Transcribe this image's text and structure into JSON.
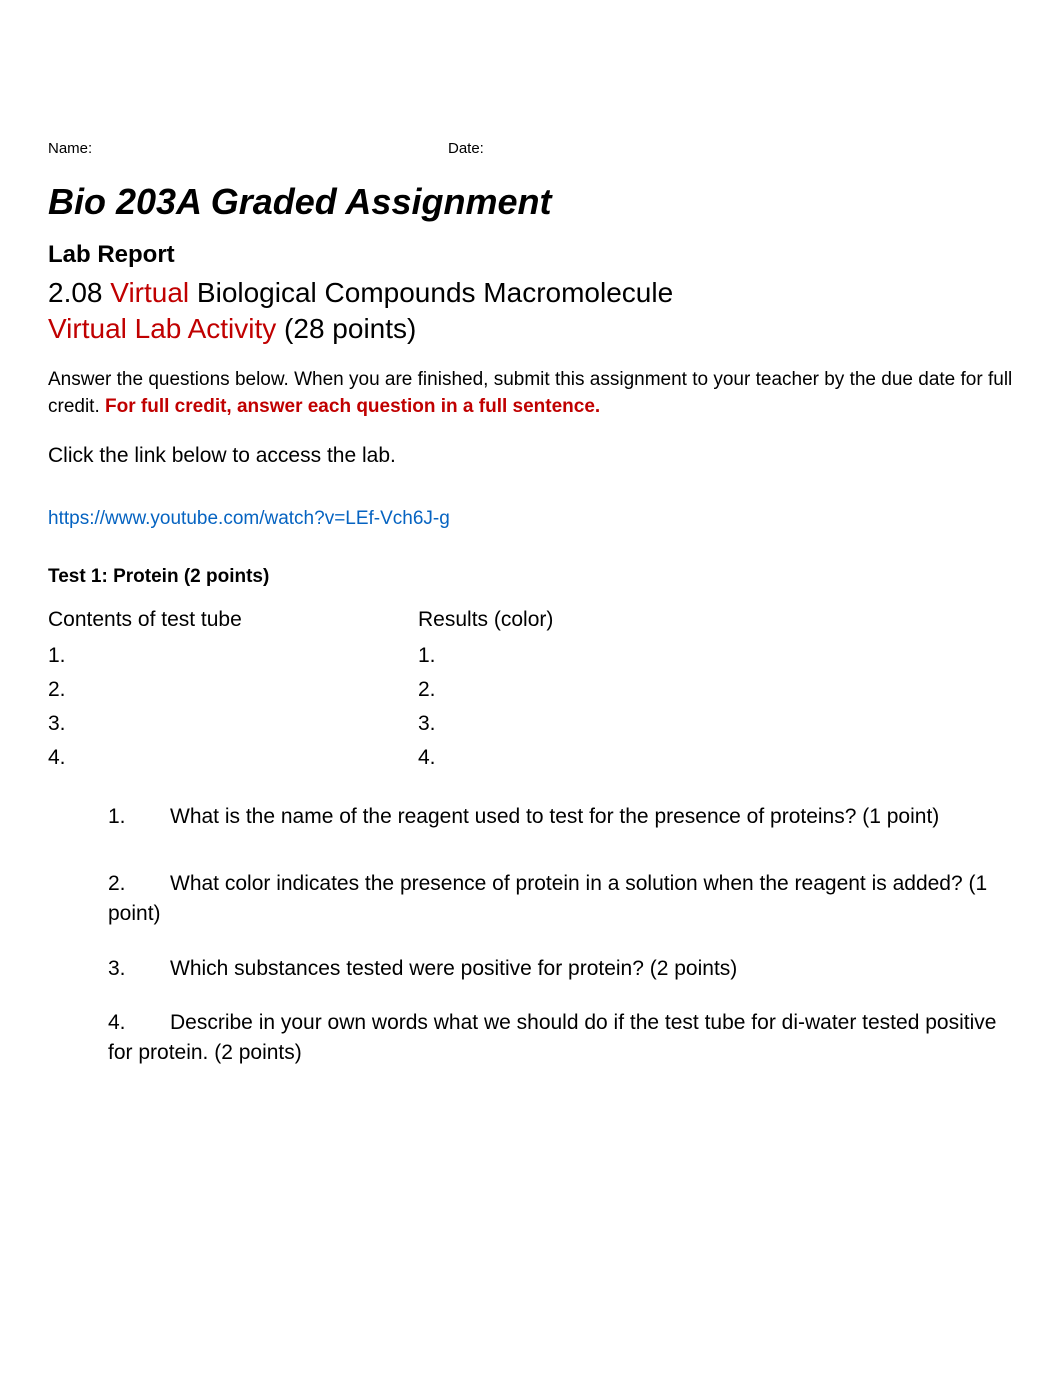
{
  "header": {
    "name_label": "Name:",
    "date_label": "Date:"
  },
  "main_title": "Bio 203A Graded Assignment",
  "lab_report_heading": "Lab Report",
  "subtitle": {
    "part1_prefix": "2.08 ",
    "part1_red": "Virtual",
    "part1_suffix": " Biological Compounds Macromolecule",
    "part2_red": "Virtual Lab Activity",
    "part2_suffix": " (28 points)"
  },
  "instructions": {
    "text1": "Answer the questions below. When you are finished, submit this assignment to your teacher by the due date for full credit.  ",
    "text2_red": "For full credit, answer each question in a full sentence."
  },
  "click_link_text": "Click the link below to access the lab.",
  "link_url": "https://www.youtube.com/watch?v=LEf-Vch6J-g",
  "test1": {
    "heading": "Test 1: Protein (2 points)",
    "col1_header": "Contents of test tube",
    "col2_header": "Results (color)",
    "rows": [
      {
        "col1": "1.",
        "col2": "1."
      },
      {
        "col1": "2.",
        "col2": "2."
      },
      {
        "col1": "3.",
        "col2": "3."
      },
      {
        "col1": "4.",
        "col2": "4."
      }
    ]
  },
  "questions": [
    {
      "num": "1.",
      "text": "What is the name of the reagent used to test for the presence of proteins? (1 point)"
    },
    {
      "num": "2.",
      "text": "What color indicates the presence of protein in a solution when the reagent is added? (1 point)"
    },
    {
      "num": "3.",
      "text": "Which substances tested were positive for protein? (2 points)"
    },
    {
      "num": "4.",
      "text": "Describe in your own words what we should do if the test tube for di-water tested positive for protein. (2 points)"
    }
  ],
  "colors": {
    "red": "#c00000",
    "link_blue": "#0563c1",
    "text_black": "#000000",
    "background": "#ffffff"
  },
  "typography": {
    "body_font": "Segoe UI, Tahoma, sans-serif",
    "main_title_size": 36,
    "subtitle_size": 28,
    "lab_heading_size": 24,
    "body_size": 21,
    "instruction_size": 19,
    "header_size": 15
  }
}
